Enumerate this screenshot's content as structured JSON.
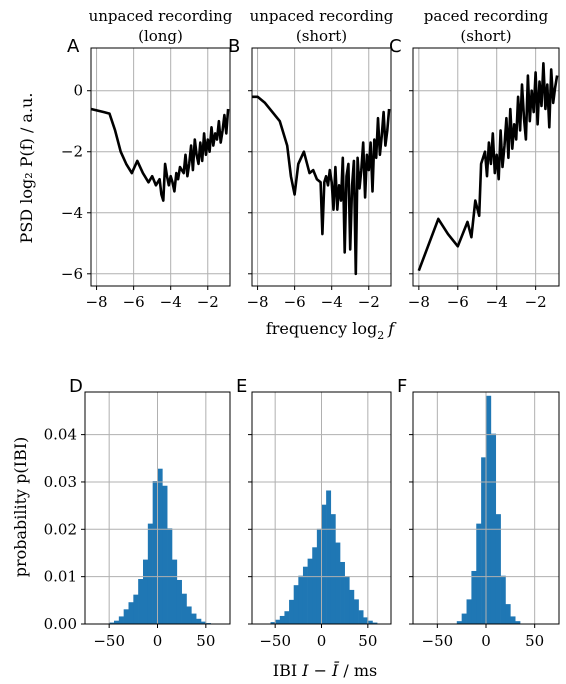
{
  "chart_data": {
    "type": "line",
    "top_row": {
      "xlabel_prefix": "frequency log",
      "xlabel_sub": "2",
      "xlabel_var": "f",
      "ylabel": "PSD log₂ P(f) / a.u.",
      "xlim": [
        -8.3,
        -0.8
      ],
      "ylim": [
        -6.4,
        1.4
      ],
      "xticks": [
        -8,
        -6,
        -4,
        -2
      ],
      "yticks": [
        0,
        -2,
        -4,
        -6
      ],
      "xtick_labels": [
        "−8",
        "−6",
        "−4",
        "−2"
      ],
      "ytick_labels": [
        "0",
        "−2",
        "−4",
        "−6"
      ],
      "panels": [
        {
          "letter": "A",
          "title_line1": "unpaced recording",
          "title_line2": "(long)",
          "x": [
            -8.3,
            -7.6,
            -7.3,
            -7.0,
            -6.7,
            -6.4,
            -6.1,
            -5.8,
            -5.5,
            -5.2,
            -5.0,
            -4.8,
            -4.6,
            -4.5,
            -4.4,
            -4.3,
            -4.2,
            -4.1,
            -4.0,
            -3.9,
            -3.8,
            -3.7,
            -3.6,
            -3.5,
            -3.4,
            -3.3,
            -3.2,
            -3.1,
            -3.0,
            -2.9,
            -2.8,
            -2.7,
            -2.6,
            -2.5,
            -2.4,
            -2.3,
            -2.2,
            -2.1,
            -2.0,
            -1.9,
            -1.8,
            -1.7,
            -1.6,
            -1.5,
            -1.4,
            -1.3,
            -1.2,
            -1.1,
            -1.0,
            -0.9
          ],
          "y": [
            -0.6,
            -0.7,
            -0.75,
            -1.3,
            -2.0,
            -2.4,
            -2.7,
            -2.3,
            -2.7,
            -3.0,
            -2.8,
            -3.1,
            -2.9,
            -3.4,
            -3.6,
            -2.4,
            -2.8,
            -3.1,
            -2.8,
            -3.0,
            -3.3,
            -2.7,
            -2.9,
            -2.5,
            -2.6,
            -2.7,
            -2.1,
            -2.8,
            -2.4,
            -1.8,
            -2.6,
            -1.6,
            -2.1,
            -2.4,
            -1.7,
            -2.3,
            -1.4,
            -2.1,
            -1.6,
            -2.0,
            -1.2,
            -1.8,
            -1.4,
            -1.6,
            -1.0,
            -1.7,
            -1.3,
            -0.8,
            -1.4,
            -0.6
          ]
        },
        {
          "letter": "B",
          "title_line1": "unpaced recording",
          "title_line2": "(short)",
          "x": [
            -8.3,
            -8.0,
            -7.6,
            -7.2,
            -6.8,
            -6.4,
            -6.2,
            -6.0,
            -5.8,
            -5.5,
            -5.2,
            -5.0,
            -4.8,
            -4.6,
            -4.5,
            -4.4,
            -4.3,
            -4.2,
            -4.1,
            -4.0,
            -3.9,
            -3.8,
            -3.7,
            -3.6,
            -3.5,
            -3.4,
            -3.3,
            -3.2,
            -3.1,
            -3.0,
            -2.9,
            -2.8,
            -2.7,
            -2.6,
            -2.5,
            -2.4,
            -2.3,
            -2.2,
            -2.1,
            -2.0,
            -1.9,
            -1.8,
            -1.7,
            -1.6,
            -1.5,
            -1.4,
            -1.3,
            -1.2,
            -1.1,
            -1.0,
            -0.9
          ],
          "y": [
            -0.2,
            -0.2,
            -0.4,
            -0.7,
            -1.0,
            -1.8,
            -2.8,
            -3.4,
            -2.4,
            -2.0,
            -2.7,
            -2.6,
            -2.9,
            -3.0,
            -4.7,
            -3.0,
            -2.8,
            -3.1,
            -2.6,
            -3.0,
            -3.9,
            -2.5,
            -3.9,
            -3.1,
            -3.6,
            -2.2,
            -5.3,
            -2.8,
            -2.4,
            -5.2,
            -3.1,
            -2.3,
            -6.0,
            -2.2,
            -3.2,
            -2.6,
            -1.7,
            -3.5,
            -2.1,
            -2.6,
            -1.7,
            -3.3,
            -1.6,
            -2.2,
            -0.9,
            -2.1,
            -1.5,
            -0.7,
            -1.8,
            -1.3,
            -0.6
          ]
        },
        {
          "letter": "C",
          "title_line1": "paced recording",
          "title_line2": "(short)",
          "x": [
            -8.0,
            -7.0,
            -6.5,
            -6.0,
            -5.5,
            -5.3,
            -5.1,
            -4.9,
            -4.8,
            -4.6,
            -4.5,
            -4.4,
            -4.3,
            -4.2,
            -4.1,
            -4.0,
            -3.9,
            -3.8,
            -3.7,
            -3.6,
            -3.5,
            -3.4,
            -3.3,
            -3.2,
            -3.1,
            -3.0,
            -2.9,
            -2.8,
            -2.7,
            -2.6,
            -2.5,
            -2.4,
            -2.3,
            -2.2,
            -2.1,
            -2.0,
            -1.9,
            -1.8,
            -1.7,
            -1.6,
            -1.5,
            -1.4,
            -1.3,
            -1.2,
            -1.1,
            -1.0,
            -0.9
          ],
          "y": [
            -5.9,
            -4.2,
            -4.7,
            -5.1,
            -4.3,
            -4.8,
            -3.6,
            -4.1,
            -2.4,
            -2.0,
            -2.8,
            -1.7,
            -2.4,
            -1.4,
            -2.7,
            -2.1,
            -2.9,
            -1.3,
            -2.5,
            -1.8,
            -0.9,
            -2.2,
            -0.6,
            -1.9,
            -1.1,
            -1.6,
            -0.2,
            -1.3,
            0.2,
            -0.9,
            -1.6,
            0.5,
            -1.0,
            0.0,
            -0.7,
            0.6,
            -1.1,
            0.3,
            -0.5,
            0.9,
            -0.6,
            0.2,
            -1.2,
            0.7,
            -0.4,
            0.1,
            0.5
          ]
        }
      ]
    },
    "bottom_row": {
      "type": "bar",
      "xlabel_prefix": "IBI",
      "xlabel_expr": "I − Ī",
      "xlabel_unit": "/ ms",
      "ylabel": "probability p(IBI)",
      "xlim": [
        -75,
        75
      ],
      "ylim": [
        0,
        0.049
      ],
      "xticks": [
        -50,
        0,
        50
      ],
      "yticks": [
        0.0,
        0.01,
        0.02,
        0.03,
        0.04
      ],
      "xtick_labels": [
        "−50",
        "0",
        "50"
      ],
      "ytick_labels": [
        "0.00",
        "0.01",
        "0.02",
        "0.03",
        "0.04"
      ],
      "bin_width": 5,
      "bar_color": "#1f77b4",
      "panels": [
        {
          "letter": "D",
          "bin_starts": [
            -50,
            -45,
            -40,
            -35,
            -30,
            -25,
            -20,
            -15,
            -10,
            -5,
            0,
            5,
            10,
            15,
            20,
            25,
            30,
            35,
            40,
            45,
            50
          ],
          "values": [
            0.0003,
            0.0007,
            0.0016,
            0.0031,
            0.0046,
            0.0062,
            0.0095,
            0.0136,
            0.0212,
            0.0302,
            0.0328,
            0.0292,
            0.0202,
            0.0136,
            0.0093,
            0.0064,
            0.0037,
            0.0022,
            0.0011,
            0.0005,
            0.0002
          ]
        },
        {
          "letter": "E",
          "bin_starts": [
            -55,
            -50,
            -45,
            -40,
            -35,
            -30,
            -25,
            -20,
            -15,
            -10,
            -5,
            0,
            5,
            10,
            15,
            20,
            25,
            30,
            35,
            40,
            45,
            50,
            55
          ],
          "values": [
            0.0004,
            0.0009,
            0.0017,
            0.0027,
            0.0051,
            0.0082,
            0.0102,
            0.0121,
            0.0138,
            0.0162,
            0.0201,
            0.0252,
            0.0282,
            0.0232,
            0.0172,
            0.0131,
            0.0101,
            0.0072,
            0.0052,
            0.0029,
            0.0014,
            0.0007,
            0.0003
          ]
        },
        {
          "letter": "F",
          "bin_starts": [
            -30,
            -25,
            -20,
            -15,
            -10,
            -5,
            0,
            5,
            10,
            15,
            20,
            25,
            30
          ],
          "values": [
            0.0006,
            0.0022,
            0.0052,
            0.0112,
            0.0212,
            0.0352,
            0.0482,
            0.0402,
            0.0232,
            0.0102,
            0.0042,
            0.0016,
            0.0006
          ]
        }
      ]
    }
  }
}
